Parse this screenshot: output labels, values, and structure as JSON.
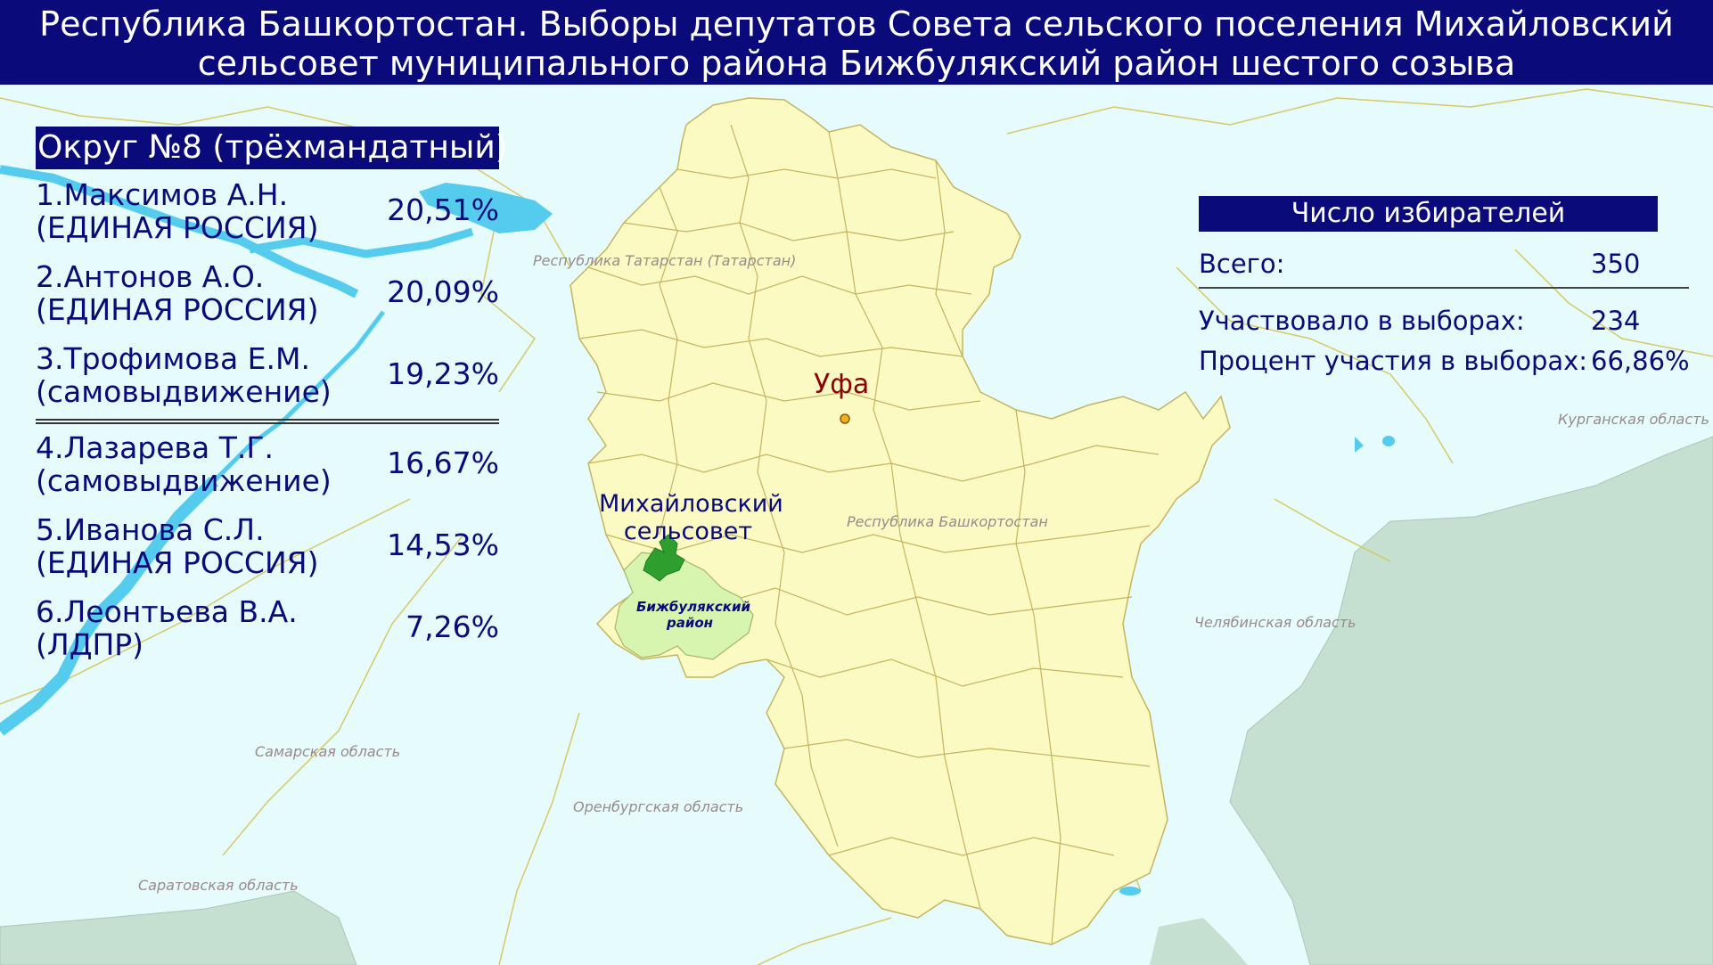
{
  "header": {
    "title_line1": "Республика Башкортостан. Выборы депутатов Совета сельского поселения Михайловский",
    "title_line2": "сельсовет муниципального района Бижбулякский район шестого созыва"
  },
  "district": {
    "title": "Округ №8 (трёхмандатный)",
    "candidates": [
      {
        "name": "1.Максимов А.Н.",
        "party": "(ЕДИНАЯ РОССИЯ)",
        "percent": "20,51%"
      },
      {
        "name": "2.Антонов А.О.",
        "party": "(ЕДИНАЯ РОССИЯ)",
        "percent": "20,09%"
      },
      {
        "name": "3.Трофимова Е.М.",
        "party": "(самовыдвижение)",
        "percent": "19,23%"
      },
      {
        "name": "4.Лазарева Т.Г.",
        "party": "(самовыдвижение)",
        "percent": "16,67%"
      },
      {
        "name": "5.Иванова С.Л.",
        "party": "(ЕДИНАЯ РОССИЯ)",
        "percent": "14,53%"
      },
      {
        "name": "6.Леонтьева В.А.",
        "party": "(ЛДПР)",
        "percent": "7,26%"
      }
    ]
  },
  "voters": {
    "title": "Число избирателей",
    "total_label": "Всего:",
    "total_value": "350",
    "participated_label": "Участвовало в выборах:",
    "participated_value": "234",
    "turnout_label": "Процент участия в выборах:",
    "turnout_value": "66,86%"
  },
  "map": {
    "city": "Уфа",
    "settlement_label": "Михайловский сельсовет",
    "district_label": "Бижбулякский район",
    "regions": {
      "tatarstan": "Республика Татарстан (Татарстан)",
      "bashkortostan": "Республика Башкортостан",
      "kurgan": "Курганская область",
      "chelyabinsk": "Челябинская область",
      "samara": "Самарская область",
      "orenburg": "Оренбургская область",
      "saratov": "Саратовская область"
    },
    "colors": {
      "background": "#e6fbfb",
      "bashkortostan_fill": "#fafac2",
      "district_fill": "#d8f5b0",
      "settlement_fill": "#2e9e2e",
      "water": "#55ccee",
      "kazakhstan_fill": "#c5dfd0",
      "header_fill": "#0a0a7a"
    }
  }
}
